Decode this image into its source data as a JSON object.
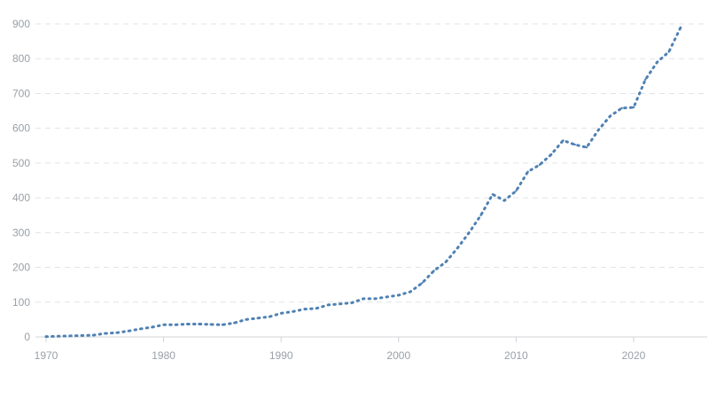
{
  "chart_data": {
    "type": "line",
    "title": "",
    "xlabel": "",
    "ylabel": "",
    "xlim": [
      1970,
      2024
    ],
    "ylim": [
      0,
      900
    ],
    "x_ticks": [
      1970,
      1980,
      1990,
      2000,
      2010,
      2020
    ],
    "y_ticks": [
      0,
      100,
      200,
      300,
      400,
      500,
      600,
      700,
      800,
      900
    ],
    "grid": {
      "horizontal": true,
      "vertical": false,
      "style": "dashed"
    },
    "series_color": "#4f81b3",
    "series": [
      {
        "x": [
          1970,
          1971,
          1972,
          1973,
          1974,
          1975,
          1976,
          1977,
          1978,
          1979,
          1980,
          1981,
          1982,
          1983,
          1984,
          1985,
          1986,
          1987,
          1988,
          1989,
          1990,
          1991,
          1992,
          1993,
          1994,
          1995,
          1996,
          1997,
          1998,
          1999,
          2000,
          2001,
          2002,
          2003,
          2004,
          2005,
          2006,
          2007,
          2008,
          2009,
          2010,
          2011,
          2012,
          2013,
          2014,
          2015,
          2016,
          2017,
          2018,
          2019,
          2020,
          2021,
          2022,
          2023,
          2024
        ],
        "values": [
          1,
          2,
          3,
          4,
          5,
          10,
          12,
          17,
          23,
          28,
          35,
          35,
          37,
          37,
          36,
          35,
          40,
          50,
          54,
          58,
          68,
          73,
          80,
          82,
          92,
          95,
          98,
          110,
          110,
          115,
          120,
          130,
          155,
          190,
          215,
          255,
          300,
          350,
          410,
          392,
          420,
          475,
          495,
          525,
          565,
          553,
          545,
          595,
          635,
          658,
          660,
          740,
          790,
          820,
          890
        ]
      }
    ]
  }
}
